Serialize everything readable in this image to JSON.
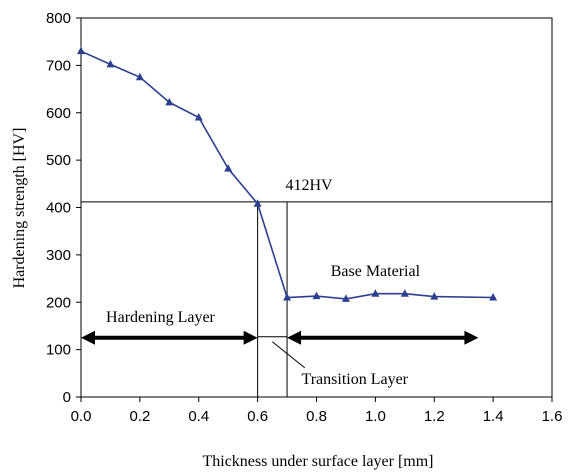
{
  "chart_data": {
    "type": "line",
    "title": "",
    "xlabel": "Thickness under surface layer [mm]",
    "ylabel": "Hardening strength [HV]",
    "xlim": [
      0,
      1.6
    ],
    "ylim": [
      0,
      800
    ],
    "xticks": [
      "0.0",
      "0.2",
      "0.4",
      "0.6",
      "0.8",
      "1.0",
      "1.2",
      "1.4",
      "1.6"
    ],
    "yticks": [
      "0",
      "100",
      "200",
      "300",
      "400",
      "500",
      "600",
      "700",
      "800"
    ],
    "grid": false,
    "series": [
      {
        "marker": "triangle",
        "color": "#2e3f8f",
        "x": [
          0.0,
          0.1,
          0.2,
          0.3,
          0.4,
          0.5,
          0.6,
          0.7,
          0.8,
          0.9,
          1.0,
          1.1,
          1.2,
          1.4
        ],
        "y": [
          730,
          702,
          675,
          622,
          590,
          482,
          408,
          210,
          213,
          207,
          218,
          218,
          212,
          210
        ]
      }
    ],
    "reference_line": {
      "y": 412,
      "label": "412HV"
    },
    "boundaries": [
      0.6,
      0.7
    ],
    "annotations": {
      "hardening_layer": "Hardening Layer",
      "base_material": "Base Material",
      "transition_layer": "Transition Layer"
    },
    "arrows": {
      "hardening": {
        "from": 0.0,
        "to": 0.6,
        "y": 125
      },
      "base": {
        "from": 0.7,
        "to": 1.35,
        "y": 125
      }
    }
  }
}
